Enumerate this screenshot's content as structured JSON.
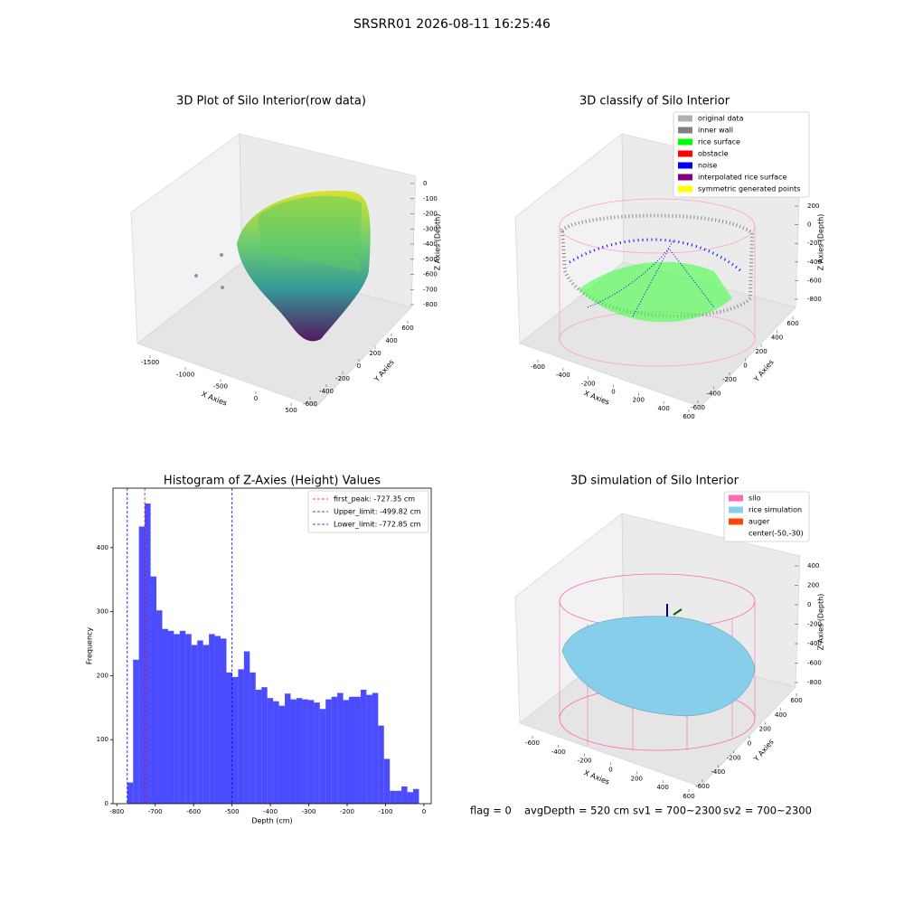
{
  "title": "SRSRR01 2026-08-11 16:25:46",
  "chart_data": [
    {
      "type": "scatter3d",
      "title": "3D Plot of Silo Interior(row data)",
      "xlabel": "X Axies",
      "ylabel": "Y Axies",
      "zlabel": "Z Axies (Depth)",
      "xticks": [
        -1500,
        -1000,
        -500,
        0,
        500
      ],
      "yticks": [
        -600,
        -400,
        -200,
        0,
        200,
        400,
        600
      ],
      "zticks": [
        0,
        -100,
        -200,
        -300,
        -400,
        -500,
        -600,
        -700,
        -800
      ]
    },
    {
      "type": "scatter3d",
      "title": "3D classify of Silo Interior",
      "xlabel": "X Axies",
      "ylabel": "Y Axies",
      "zlabel": "Z Axies (Depth)",
      "xticks": [
        -600,
        -400,
        -200,
        0,
        200,
        400,
        600
      ],
      "yticks": [
        -600,
        -400,
        -200,
        0,
        200,
        400,
        600
      ],
      "zticks": [
        200,
        0,
        -200,
        -400,
        -600,
        -800
      ],
      "legend": [
        {
          "name": "original data",
          "color": "#b0b0b0"
        },
        {
          "name": "inner wall",
          "color": "#808080"
        },
        {
          "name": "rice surface",
          "color": "#00ff00"
        },
        {
          "name": "obstacle",
          "color": "#ff0000"
        },
        {
          "name": "noise",
          "color": "#0000ff"
        },
        {
          "name": "interpolated rice surface",
          "color": "#800080"
        },
        {
          "name": "symmetric generated points",
          "color": "#ffff00"
        }
      ]
    },
    {
      "type": "histogram",
      "title": "Histogram of Z-Axies (Height) Values",
      "xlabel": "Depth (cm)",
      "ylabel": "Frequency",
      "color": "#0000ff",
      "alpha": 0.7,
      "bins": [
        -772.85,
        -757.65,
        -742.45,
        -727.25,
        -712.05,
        -696.85,
        -681.65,
        -666.45,
        -651.25,
        -636.05,
        -620.85,
        -605.65,
        -590.45,
        -575.25,
        -560.05,
        -544.85,
        -529.65,
        -514.45,
        -499.25,
        -484.05,
        -468.85,
        -453.65,
        -438.45,
        -423.25,
        -408.05,
        -392.85,
        -377.65,
        -362.45,
        -347.25,
        -332.05,
        -316.85,
        -301.65,
        -286.45,
        -271.25,
        -256.05,
        -240.85,
        -225.65,
        -210.45,
        -195.25,
        -180.05,
        -164.85,
        -149.65,
        -134.45,
        -119.25,
        -104.05,
        -88.85,
        -73.65,
        -58.45,
        -43.25,
        -28.05,
        -12.85
      ],
      "values": [
        33,
        225,
        433,
        469,
        355,
        302,
        273,
        270,
        265,
        270,
        265,
        248,
        255,
        248,
        265,
        262,
        258,
        205,
        198,
        210,
        238,
        205,
        178,
        182,
        165,
        160,
        153,
        172,
        163,
        165,
        163,
        162,
        158,
        148,
        163,
        167,
        173,
        162,
        167,
        167,
        178,
        170,
        173,
        122,
        70,
        20,
        20,
        27,
        18,
        23
      ],
      "xlim": [
        -810,
        19
      ],
      "ylim": [
        0,
        493
      ],
      "xticks": [
        -800,
        -700,
        -600,
        -500,
        -400,
        -300,
        -200,
        -100,
        0
      ],
      "yticks": [
        0,
        100,
        200,
        300,
        400
      ],
      "lines": [
        {
          "name": "first_peak: -727.35 cm",
          "value": -727.35,
          "color": "#ff0000"
        },
        {
          "name": "Upper_limit: -499.82 cm",
          "value": -499.82,
          "color": "#0000ff"
        },
        {
          "name": "Lower_limit: -772.85 cm",
          "value": -772.85,
          "color": "#0000ff"
        }
      ],
      "legend_position": "upper right"
    },
    {
      "type": "scatter3d",
      "title": "3D simulation of Silo Interior",
      "xlabel": "X Axies",
      "ylabel": "Y Axies",
      "zlabel": "Z Axies (Depth)",
      "xticks": [
        -600,
        -400,
        -200,
        0,
        200,
        400,
        600
      ],
      "yticks": [
        -600,
        -400,
        -200,
        0,
        200,
        400,
        600
      ],
      "zticks": [
        400,
        200,
        0,
        -200,
        -400,
        -600,
        -800
      ],
      "legend": [
        {
          "name": "silo",
          "color": "#ff69b4"
        },
        {
          "name": "rice simulation",
          "color": "#87ceeb"
        },
        {
          "name": "auger",
          "color": "#ff4500"
        },
        {
          "name": "center(-50,-30)",
          "color": "#ffffff"
        }
      ]
    }
  ],
  "footer": [
    "flag = 0",
    "avgDepth = 520 cm",
    "sv1 = 700~2300",
    "sv2 = 700~2300"
  ]
}
